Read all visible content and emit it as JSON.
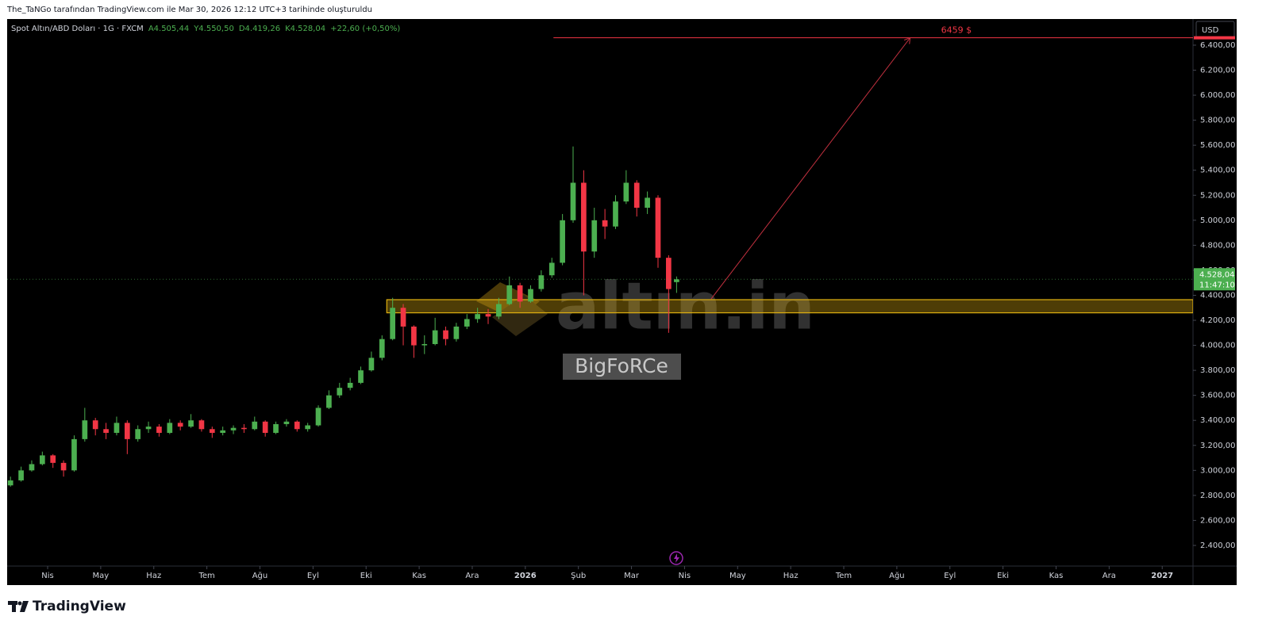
{
  "header": {
    "credit": "The_TaNGo tarafından TradingView.com ile Mar 30, 2026 12:12 UTC+3 tarihinde oluşturuldu"
  },
  "footer": {
    "brand": "TradingView"
  },
  "chart_data": {
    "type": "candlestick",
    "symbol": "Spot Altın/ABD Doları · 1G · FXCM",
    "ohlc_labels": [
      "A4.505,44",
      "Y4.550,50",
      "D4.419,26",
      "K4.528,04",
      "+22,60 (+0,50%)"
    ],
    "currency": "USD",
    "last_price": {
      "value": 4528.04,
      "label": "4.528,04"
    },
    "countdown": "11:47:10",
    "up_color": "#4caf50",
    "down_color": "#f23645",
    "xlim": [
      -0.763,
      21.58
    ],
    "ylim": [
      2235,
      6609
    ],
    "xticks": [
      {
        "value": 0,
        "label": "Nis"
      },
      {
        "value": 1,
        "label": "May"
      },
      {
        "value": 2,
        "label": "Haz"
      },
      {
        "value": 3,
        "label": "Tem"
      },
      {
        "value": 4,
        "label": "Ağu"
      },
      {
        "value": 5,
        "label": "Eyl"
      },
      {
        "value": 6,
        "label": "Eki"
      },
      {
        "value": 7,
        "label": "Kas"
      },
      {
        "value": 8,
        "label": "Ara"
      },
      {
        "value": 9,
        "label": "2026"
      },
      {
        "value": 10,
        "label": "Şub"
      },
      {
        "value": 11,
        "label": "Mar"
      },
      {
        "value": 12,
        "label": "Nis"
      },
      {
        "value": 13,
        "label": "May"
      },
      {
        "value": 14,
        "label": "Haz"
      },
      {
        "value": 15,
        "label": "Tem"
      },
      {
        "value": 16,
        "label": "Ağu"
      },
      {
        "value": 17,
        "label": "Eyl"
      },
      {
        "value": 18,
        "label": "Eki"
      },
      {
        "value": 19,
        "label": "Kas"
      },
      {
        "value": 20,
        "label": "Ara"
      },
      {
        "value": 21,
        "label": "2027"
      }
    ],
    "yticks": [
      {
        "value": 2400,
        "label": "2.400,00"
      },
      {
        "value": 2600,
        "label": "2.600,00"
      },
      {
        "value": 2800,
        "label": "2.800,00"
      },
      {
        "value": 3000,
        "label": "3.000,00"
      },
      {
        "value": 3200,
        "label": "3.200,00"
      },
      {
        "value": 3400,
        "label": "3.400,00"
      },
      {
        "value": 3600,
        "label": "3.600,00"
      },
      {
        "value": 3800,
        "label": "3.800,00"
      },
      {
        "value": 4000,
        "label": "4.000,00"
      },
      {
        "value": 4200,
        "label": "4.200,00"
      },
      {
        "value": 4400,
        "label": "4.400,00"
      },
      {
        "value": 4600,
        "label": "4.600,00"
      },
      {
        "value": 4800,
        "label": "4.800,00"
      },
      {
        "value": 5000,
        "label": "5.000,00"
      },
      {
        "value": 5200,
        "label": "5.200,00"
      },
      {
        "value": 5400,
        "label": "5.400,00"
      },
      {
        "value": 5600,
        "label": "5.600,00"
      },
      {
        "value": 5800,
        "label": "5.800,00"
      },
      {
        "value": 6000,
        "label": "6.000,00"
      },
      {
        "value": 6200,
        "label": "6.200,00"
      },
      {
        "value": 6400,
        "label": "6.400,00"
      }
    ],
    "x": [
      -0.7,
      -0.5,
      -0.3,
      -0.1,
      0.1,
      0.3,
      0.5,
      0.7,
      0.9,
      1.1,
      1.3,
      1.5,
      1.7,
      1.9,
      2.1,
      2.3,
      2.5,
      2.7,
      2.9,
      3.1,
      3.3,
      3.5,
      3.7,
      3.9,
      4.1,
      4.3,
      4.5,
      4.7,
      4.9,
      5.1,
      5.3,
      5.5,
      5.7,
      5.9,
      6.1,
      6.3,
      6.5,
      6.7,
      6.9,
      7.1,
      7.3,
      7.5,
      7.7,
      7.9,
      8.1,
      8.3,
      8.5,
      8.7,
      8.9,
      9.1,
      9.3,
      9.5,
      9.7,
      9.9,
      10.1,
      10.3,
      10.5,
      10.7,
      10.9,
      11.1,
      11.3,
      11.5,
      11.7,
      11.85
    ],
    "open": [
      2880,
      2920,
      3000,
      3050,
      3120,
      3060,
      3000,
      3250,
      3400,
      3330,
      3300,
      3380,
      3250,
      3330,
      3350,
      3300,
      3380,
      3350,
      3400,
      3330,
      3300,
      3320,
      3340,
      3330,
      3390,
      3300,
      3370,
      3390,
      3330,
      3360,
      3500,
      3600,
      3660,
      3700,
      3800,
      3900,
      4050,
      4300,
      4150,
      4000,
      4010,
      4120,
      4050,
      4150,
      4210,
      4250,
      4230,
      4330,
      4480,
      4350,
      4450,
      4560,
      4660,
      5000,
      5300,
      4750,
      5000,
      4950,
      5150,
      5300,
      5100,
      5180,
      4700,
      4505.44
    ],
    "high": [
      2950,
      3030,
      3080,
      3150,
      3130,
      3080,
      3280,
      3500,
      3420,
      3380,
      3430,
      3400,
      3360,
      3390,
      3370,
      3410,
      3400,
      3450,
      3410,
      3350,
      3350,
      3360,
      3370,
      3430,
      3400,
      3390,
      3410,
      3400,
      3380,
      3520,
      3640,
      3700,
      3740,
      3830,
      3950,
      4080,
      4380,
      4330,
      4160,
      4080,
      4220,
      4150,
      4180,
      4250,
      4300,
      4290,
      4380,
      4550,
      4500,
      4480,
      4600,
      4700,
      5050,
      5590,
      5400,
      5100,
      5090,
      5200,
      5400,
      5320,
      5230,
      5200,
      4720,
      4550.5
    ],
    "low": [
      2870,
      2910,
      2990,
      3040,
      3020,
      2950,
      2990,
      3230,
      3280,
      3250,
      3280,
      3130,
      3230,
      3300,
      3270,
      3290,
      3320,
      3340,
      3310,
      3260,
      3280,
      3290,
      3300,
      3320,
      3270,
      3290,
      3350,
      3310,
      3310,
      3350,
      3490,
      3580,
      3640,
      3690,
      3790,
      3880,
      4040,
      4000,
      3900,
      3930,
      4000,
      4000,
      4030,
      4130,
      4180,
      4170,
      4210,
      4320,
      4300,
      4340,
      4430,
      4540,
      4640,
      4980,
      4400,
      4700,
      4850,
      4930,
      5130,
      5030,
      5050,
      4620,
      4100,
      4419.26
    ],
    "close": [
      2920,
      3000,
      3050,
      3120,
      3060,
      3000,
      3250,
      3400,
      3330,
      3300,
      3380,
      3250,
      3330,
      3350,
      3300,
      3380,
      3350,
      3400,
      3330,
      3300,
      3320,
      3340,
      3330,
      3390,
      3300,
      3370,
      3390,
      3330,
      3360,
      3500,
      3600,
      3660,
      3700,
      3800,
      3900,
      4050,
      4300,
      4150,
      4000,
      4010,
      4120,
      4050,
      4150,
      4210,
      4250,
      4230,
      4330,
      4480,
      4350,
      4450,
      4560,
      4660,
      5000,
      5300,
      4750,
      5000,
      4950,
      5150,
      5300,
      5100,
      5180,
      4700,
      4450,
      4528.04
    ],
    "target": {
      "value": 6459,
      "label": "6459 $",
      "x_start": 9.53,
      "color": "#f23645"
    },
    "arrow": {
      "from": [
        12.5,
        4370
      ],
      "to": [
        16.25,
        6459
      ],
      "color": "#c2303f"
    },
    "zone": {
      "x_start": 6.39,
      "low": 4260,
      "high": 4365,
      "color": "#e0b010"
    },
    "watermark": {
      "site": "altın.in",
      "author": "BigFoRCe"
    }
  }
}
